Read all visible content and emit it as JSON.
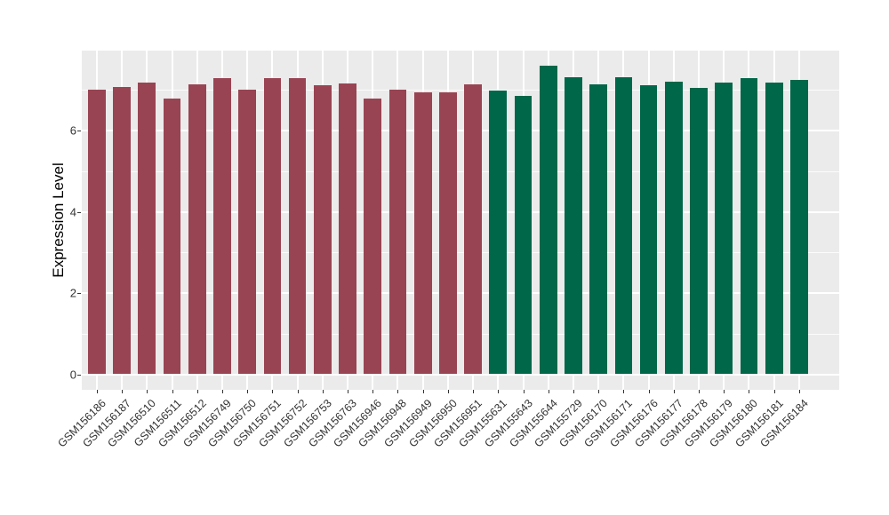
{
  "chart_data": {
    "type": "bar",
    "title": "",
    "xlabel": "",
    "ylabel": "Expression Level",
    "categories": [
      "GSM156186",
      "GSM156187",
      "GSM156510",
      "GSM156511",
      "GSM156512",
      "GSM156749",
      "GSM156750",
      "GSM156751",
      "GSM156752",
      "GSM156753",
      "GSM156763",
      "GSM156946",
      "GSM156948",
      "GSM156949",
      "GSM156950",
      "GSM156951",
      "GSM155631",
      "GSM155643",
      "GSM155644",
      "GSM155729",
      "GSM156170",
      "GSM156171",
      "GSM156176",
      "GSM156177",
      "GSM156178",
      "GSM156179",
      "GSM156180",
      "GSM156181",
      "GSM156184"
    ],
    "values": [
      7.01,
      7.08,
      7.17,
      6.79,
      7.13,
      7.28,
      7.01,
      7.3,
      7.28,
      7.12,
      7.16,
      6.79,
      7.01,
      6.94,
      6.95,
      7.13,
      6.98,
      6.86,
      7.6,
      7.31,
      7.14,
      7.32,
      7.11,
      7.2,
      7.06,
      7.18,
      7.28,
      7.17,
      7.24
    ],
    "bar_colors": [
      "#994453",
      "#994453",
      "#994453",
      "#994453",
      "#994453",
      "#994453",
      "#994453",
      "#994453",
      "#994453",
      "#994453",
      "#994453",
      "#994453",
      "#994453",
      "#994453",
      "#994453",
      "#994453",
      "#006749",
      "#006749",
      "#006749",
      "#006749",
      "#006749",
      "#006749",
      "#006749",
      "#006749",
      "#006749",
      "#006749",
      "#006749",
      "#006749",
      "#006749"
    ],
    "groups": [
      {
        "color": "#994453",
        "count": 16
      },
      {
        "color": "#006749",
        "count": 13
      }
    ],
    "y_ticks": [
      0,
      2,
      4,
      6
    ],
    "ylim": [
      -0.37,
      7.97
    ],
    "grid": "on",
    "legend": "none",
    "panel_bg": "#EBEBEB",
    "grid_color": "#FFFFFF",
    "tick_color": "#333333",
    "axis_text_color": "#333333",
    "axis_title_color": "#000000"
  }
}
